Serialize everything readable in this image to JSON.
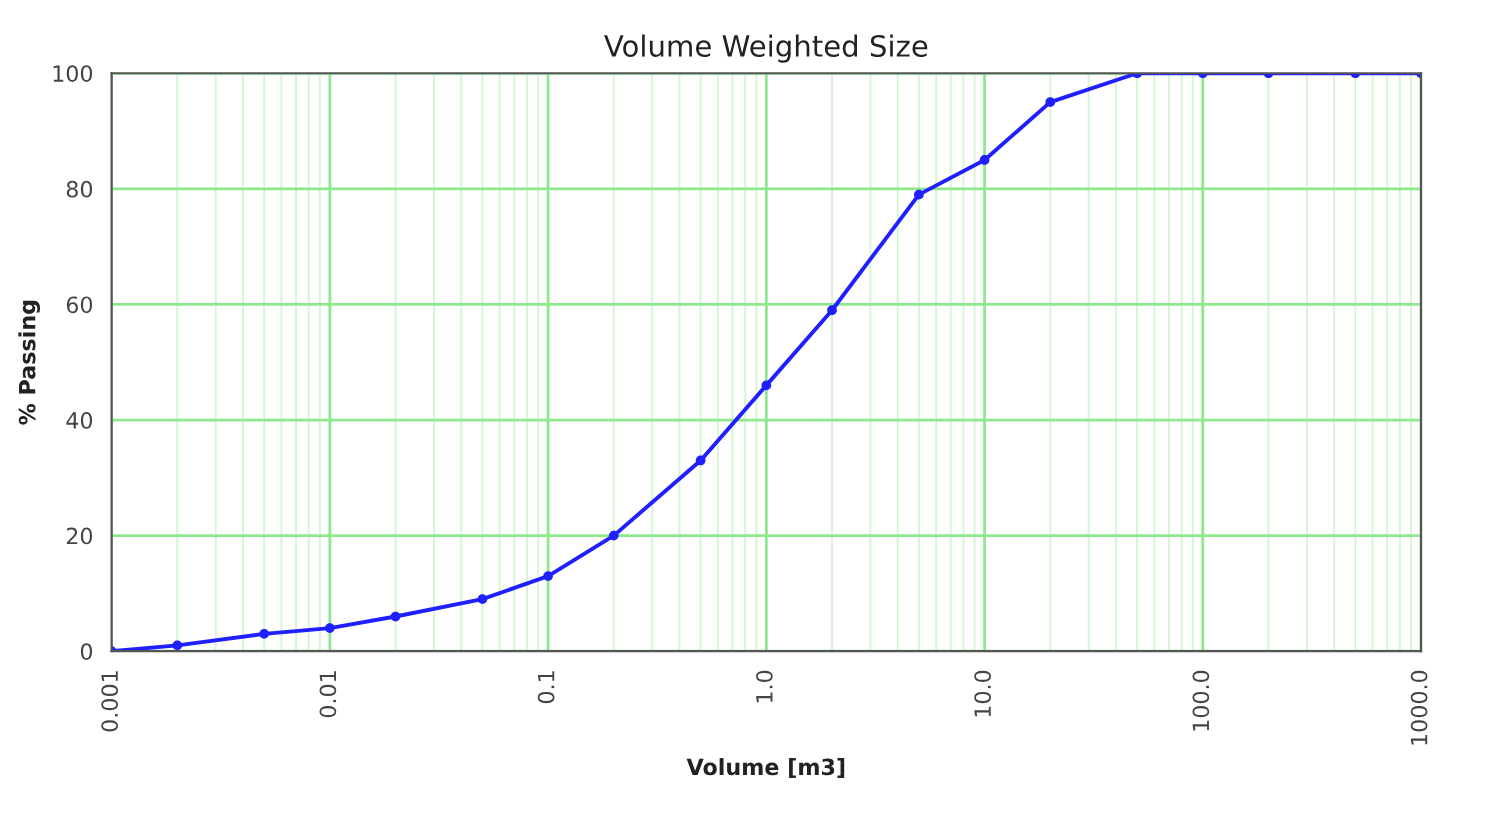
{
  "chart_data": {
    "type": "line",
    "title": "Volume Weighted Size",
    "xlabel": "Volume [m3]",
    "ylabel": "% Passing",
    "log": "x",
    "grid": true,
    "marker": "circle",
    "line_style": "solid",
    "series": [
      {
        "color": "#1f1fff",
        "x": [
          0.001,
          0.002,
          0.005,
          0.01,
          0.02,
          0.05,
          0.1,
          0.2,
          0.5,
          1,
          2,
          5,
          10,
          20,
          50,
          100,
          200,
          500,
          1000
        ],
        "values": [
          0,
          1,
          3,
          4,
          6,
          9,
          13,
          20,
          33,
          46,
          59,
          79,
          85,
          95,
          100,
          100,
          100,
          100,
          100
        ]
      }
    ],
    "xlim": [
      0.001,
      1000
    ],
    "xticks": [
      0.001,
      0.01,
      0.1,
      {
        "value": 1,
        "label": "1.0"
      },
      {
        "value": 10,
        "label": "10.0"
      },
      {
        "value": 100,
        "label": "100.0"
      },
      {
        "value": 1000,
        "label": "1000.0"
      }
    ],
    "ylim": [
      0,
      100
    ],
    "yticks": [
      0,
      20,
      40,
      60,
      80,
      100
    ]
  }
}
